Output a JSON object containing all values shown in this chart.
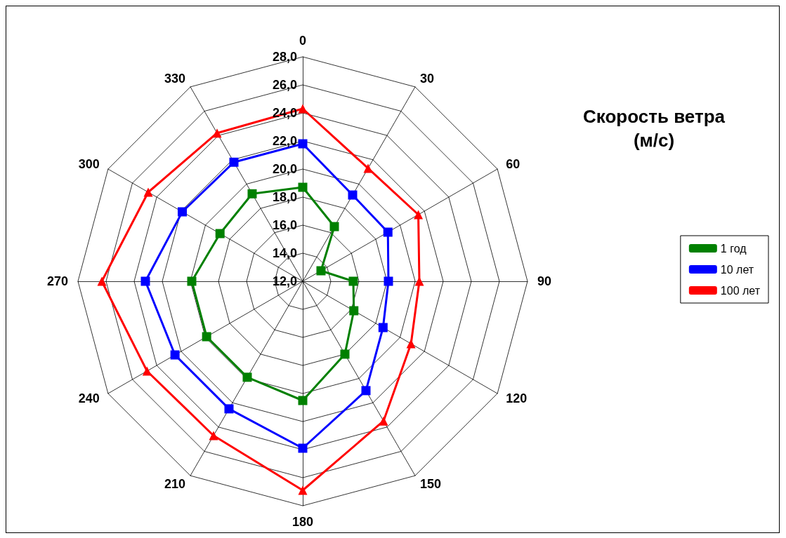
{
  "chart_data": {
    "type": "radar",
    "title": "Скорость ветра\n(м/с)",
    "categories": [
      "0",
      "30",
      "60",
      "90",
      "120",
      "150",
      "180",
      "210",
      "240",
      "270",
      "300",
      "330"
    ],
    "ylim": [
      12,
      28
    ],
    "yticks": [
      {
        "value": 12,
        "label": "12,0"
      },
      {
        "value": 14,
        "label": "14,0"
      },
      {
        "value": 16,
        "label": "16,0"
      },
      {
        "value": 18,
        "label": "18,0"
      },
      {
        "value": 20,
        "label": "20,0"
      },
      {
        "value": 22,
        "label": "22,0"
      },
      {
        "value": 24,
        "label": "24,0"
      },
      {
        "value": 26,
        "label": "26,0"
      },
      {
        "value": 28,
        "label": "28,0"
      }
    ],
    "grid": true,
    "legend": "right",
    "line_style": "solid",
    "series": [
      {
        "name": "1 год",
        "color": "#008000",
        "marker": "square",
        "values": [
          18.7,
          16.5,
          13.5,
          15.6,
          16.2,
          18.0,
          20.5,
          19.9,
          19.9,
          19.9,
          18.8,
          19.2
        ]
      },
      {
        "name": "10 лет",
        "color": "#0000ff",
        "marker": "square",
        "values": [
          21.8,
          19.1,
          19.0,
          18.1,
          18.6,
          21.0,
          23.9,
          22.5,
          22.5,
          23.2,
          21.9,
          21.8
        ]
      },
      {
        "name": "100 лет",
        "color": "#ff0000",
        "marker": "triangle",
        "values": [
          24.3,
          21.3,
          21.5,
          20.3,
          20.9,
          23.5,
          26.9,
          24.7,
          24.8,
          26.3,
          24.7,
          24.2
        ]
      }
    ]
  }
}
